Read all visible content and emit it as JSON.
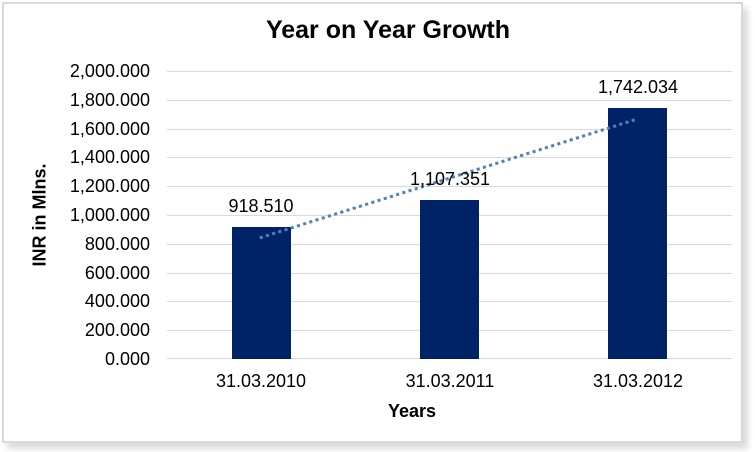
{
  "chart_data": {
    "type": "bar",
    "title": "Year on Year Growth",
    "xlabel": "Years",
    "ylabel": "INR in Mlns.",
    "categories": [
      "31.03.2010",
      "31.03.2011",
      "31.03.2012"
    ],
    "values": [
      918.51,
      1107.351,
      1742.034
    ],
    "data_labels": [
      "918.510",
      "1,107.351",
      "1,742.034"
    ],
    "ylim": [
      0,
      2000
    ],
    "ytick_step": 200,
    "ytick_labels": [
      "2,000.000",
      "1,800.000",
      "1,600.000",
      "1,400.000",
      "1,200.000",
      "1,000.000",
      "800.000",
      "600.000",
      "400.000",
      "200.000",
      "0.000"
    ],
    "grid": "horizontal",
    "legend": "none",
    "trendline": {
      "type": "linear",
      "style": "dotted"
    },
    "colors": {
      "bar": "#002266",
      "trendline": "#4F81BD",
      "gridline": "#D9D9D9",
      "frame_border": "#D9D9D9",
      "text": "#000000",
      "background": "#FFFFFF"
    }
  }
}
